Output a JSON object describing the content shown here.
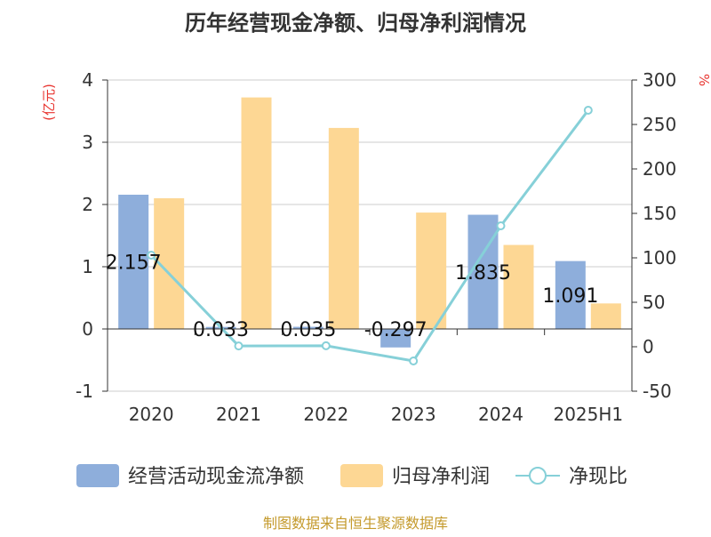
{
  "title": "历年经营现金净额、归母净利润情况",
  "left_unit": "(亿元)",
  "right_unit": "%",
  "footer": "制图数据来自恒生聚源数据库",
  "colors": {
    "cash_flow": "#8eaedb",
    "net_profit": "#fdd794",
    "ratio_line": "#86d0d8",
    "unit_text": "#e8342f",
    "footer_text": "#c49a2c",
    "axis": "#333333",
    "grid": "#cccccc"
  },
  "chart_data": {
    "type": "bar",
    "categories": [
      "2020",
      "2021",
      "2022",
      "2023",
      "2024",
      "2025H1"
    ],
    "series": [
      {
        "name": "经营活动现金流净额",
        "type": "bar",
        "axis": "left",
        "color": "#8eaedb",
        "values": [
          2.157,
          0.033,
          0.035,
          -0.297,
          1.835,
          1.091
        ],
        "labels": [
          "2.157",
          "0.033",
          "0.035",
          "-0.297",
          "1.835",
          "1.091"
        ]
      },
      {
        "name": "归母净利润",
        "type": "bar",
        "axis": "left",
        "color": "#fdd794",
        "values": [
          2.1,
          3.72,
          3.23,
          1.87,
          1.35,
          0.41
        ]
      },
      {
        "name": "净现比",
        "type": "line",
        "axis": "right",
        "color": "#86d0d8",
        "marker": "hollow-circle",
        "values": [
          103,
          0.9,
          1.1,
          -16,
          136,
          266
        ]
      }
    ],
    "y_left": {
      "min": -1,
      "max": 4,
      "ticks": [
        "-1",
        "0",
        "1",
        "2",
        "3",
        "4"
      ]
    },
    "y_right": {
      "min": -50,
      "max": 300,
      "ticks": [
        "-50",
        "0",
        "50",
        "100",
        "150",
        "200",
        "250",
        "300"
      ]
    },
    "grid": true,
    "legend_position": "bottom"
  }
}
